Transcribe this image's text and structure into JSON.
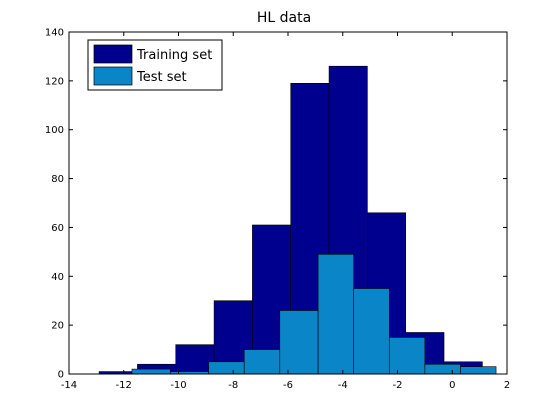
{
  "chart_data": {
    "type": "bar",
    "title": "HL data",
    "xlim": [
      -14,
      2
    ],
    "ylim": [
      0,
      140
    ],
    "xticks": [
      -14,
      -12,
      -10,
      -8,
      -6,
      -4,
      -2,
      0,
      2
    ],
    "yticks": [
      0,
      20,
      40,
      60,
      80,
      100,
      120,
      140
    ],
    "grid": false,
    "legend_position": "top-left",
    "colors": {
      "training": "#00008f",
      "test": "#0a86c8"
    },
    "series": [
      {
        "name": "Training set",
        "bins": [
          {
            "x0": -12.9,
            "x1": -11.5,
            "value": 1
          },
          {
            "x0": -11.5,
            "x1": -10.1,
            "value": 4
          },
          {
            "x0": -10.1,
            "x1": -8.7,
            "value": 12
          },
          {
            "x0": -8.7,
            "x1": -7.3,
            "value": 30
          },
          {
            "x0": -7.3,
            "x1": -5.9,
            "value": 61
          },
          {
            "x0": -5.9,
            "x1": -4.5,
            "value": 119
          },
          {
            "x0": -4.5,
            "x1": -3.1,
            "value": 126
          },
          {
            "x0": -3.1,
            "x1": -1.7,
            "value": 66
          },
          {
            "x0": -1.7,
            "x1": -0.3,
            "value": 17
          },
          {
            "x0": -0.3,
            "x1": 1.1,
            "value": 5
          }
        ]
      },
      {
        "name": "Test set",
        "bins": [
          {
            "x0": -11.7,
            "x1": -10.3,
            "value": 2
          },
          {
            "x0": -10.3,
            "x1": -8.9,
            "value": 1
          },
          {
            "x0": -8.9,
            "x1": -7.6,
            "value": 5
          },
          {
            "x0": -7.6,
            "x1": -6.3,
            "value": 10
          },
          {
            "x0": -6.3,
            "x1": -4.9,
            "value": 26
          },
          {
            "x0": -4.9,
            "x1": -3.6,
            "value": 49
          },
          {
            "x0": -3.6,
            "x1": -2.3,
            "value": 35
          },
          {
            "x0": -2.3,
            "x1": -1.0,
            "value": 15
          },
          {
            "x0": -1.0,
            "x1": 0.3,
            "value": 4
          },
          {
            "x0": 0.3,
            "x1": 1.6,
            "value": 3
          }
        ]
      }
    ]
  }
}
